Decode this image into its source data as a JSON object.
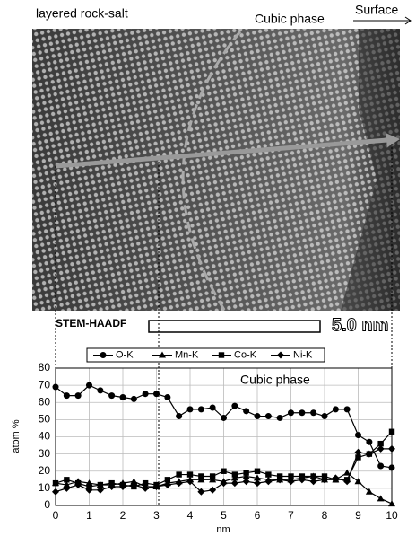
{
  "image": {
    "left_label": "layered rock-salt",
    "right_label": "Cubic phase",
    "surface_label": "Surface",
    "detector_label": "STEM-HAADF",
    "scale_label": "5.0 nm"
  },
  "chart_data": {
    "type": "line",
    "annotation": "Cubic phase",
    "xlabel": "nm",
    "ylabel": "atom %",
    "x": [
      0,
      0.33,
      0.67,
      1,
      1.33,
      1.67,
      2,
      2.33,
      2.67,
      3,
      3.33,
      3.67,
      4,
      4.33,
      4.67,
      5,
      5.33,
      5.67,
      6,
      6.33,
      6.67,
      7,
      7.33,
      7.67,
      8,
      8.33,
      8.67,
      9,
      9.33,
      9.67,
      10
    ],
    "series": [
      {
        "name": "O-K",
        "color": "#000000",
        "marker": "circle",
        "values": [
          69,
          64,
          64,
          70,
          67,
          64,
          63,
          62,
          65,
          65,
          63,
          52,
          56,
          56,
          57,
          51,
          58,
          55,
          52,
          52,
          51,
          54,
          54,
          54,
          52,
          56,
          56,
          41,
          37,
          23,
          22
        ]
      },
      {
        "name": "Mn-K",
        "color": "#000000",
        "marker": "triangle",
        "values": [
          13,
          12,
          14,
          13,
          12,
          12,
          13,
          14,
          11,
          11,
          13,
          14,
          15,
          15,
          15,
          14,
          16,
          17,
          16,
          15,
          15,
          15,
          16,
          17,
          15,
          15,
          19,
          14,
          8,
          4,
          1
        ]
      },
      {
        "name": "Co-K",
        "color": "#000000",
        "marker": "square",
        "values": [
          13,
          15,
          13,
          11,
          12,
          13,
          12,
          11,
          13,
          12,
          15,
          18,
          18,
          17,
          17,
          20,
          18,
          19,
          20,
          18,
          17,
          17,
          17,
          17,
          17,
          15,
          15,
          28,
          30,
          36,
          43
        ]
      },
      {
        "name": "Ni-K",
        "color": "#000000",
        "marker": "diamond",
        "values": [
          8,
          10,
          12,
          9,
          9,
          11,
          11,
          12,
          10,
          11,
          12,
          13,
          14,
          8,
          9,
          13,
          13,
          14,
          13,
          14,
          15,
          14,
          15,
          14,
          15,
          16,
          14,
          31,
          30,
          33,
          33
        ]
      }
    ],
    "xlim": [
      0,
      10
    ],
    "xticks": [
      0,
      1,
      2,
      3,
      4,
      5,
      6,
      7,
      8,
      9,
      10
    ],
    "ylim": [
      0,
      80
    ],
    "yticks": [
      0,
      10,
      20,
      30,
      40,
      50,
      60,
      70,
      80
    ],
    "grid": true
  }
}
